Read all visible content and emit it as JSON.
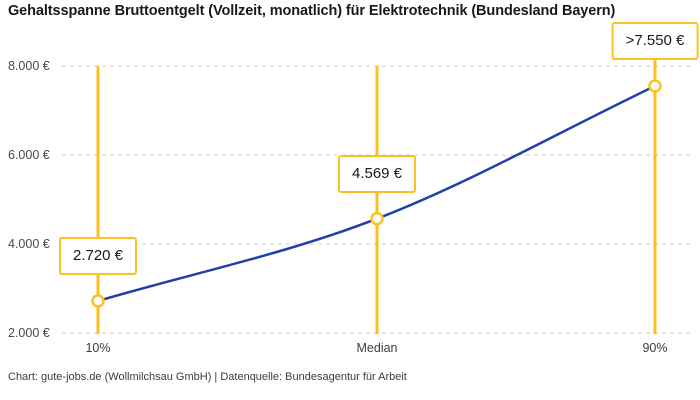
{
  "chart_data": {
    "type": "line",
    "title": "Gehaltsspanne Bruttoentgelt (Vollzeit, monatlich) für Elektrotechnik (Bundesland Bayern)",
    "categories": [
      "10%",
      "Median",
      "90%"
    ],
    "series": [
      {
        "name": "Bruttoentgelt",
        "values": [
          2720,
          4569,
          7550
        ],
        "labels": [
          "2.720 €",
          "4.569 €",
          ">7.550 €"
        ]
      }
    ],
    "xlabel": "",
    "ylabel": "",
    "ylim": [
      2000,
      8000
    ],
    "yticks": [
      2000,
      4000,
      6000,
      8000
    ],
    "ytick_labels": [
      "2.000 €",
      "4.000 €",
      "6.000 €",
      "8.000 €"
    ],
    "grid": "horizontal-dashed",
    "legend": "none",
    "line_color": "#2040A8",
    "marker_color": "#FCC11F",
    "grid_color": "#CCCCCC",
    "source_note": "Chart: gute-jobs.de (Wollmilchsau GmbH) | Datenquelle: Bundesagentur für Arbeit"
  }
}
